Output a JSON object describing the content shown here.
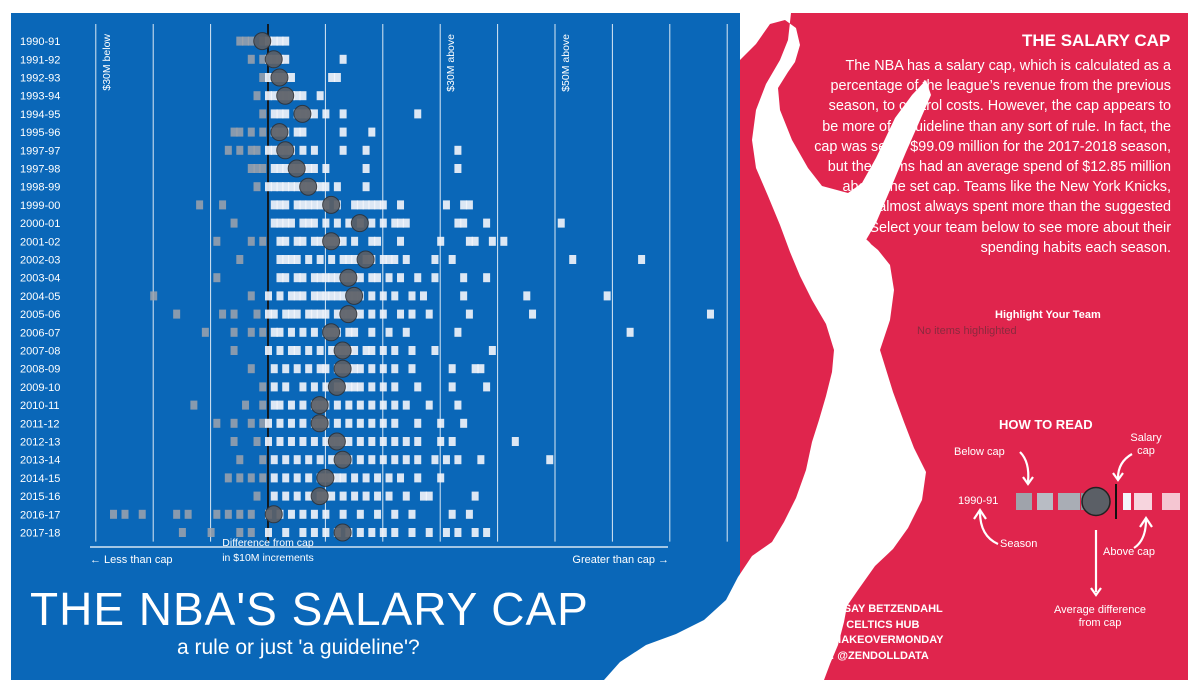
{
  "title": "THE NBA'S SALARY CAP",
  "subtitle": "a rule or just 'a guideline'?",
  "colors": {
    "blue": "#0a67b8",
    "red": "#e0254d",
    "white": "#ffffff",
    "mean_dot": "#5b5f66"
  },
  "side_panel": {
    "heading": "THE SALARY CAP",
    "description": "The NBA has a salary cap, which is calculated as a percentage of the league’s revenue from the previous season, to control costs. However, the cap appears to be more of a guideline than any sort of rule. In fact, the cap was set at $99.09 million for the 2017-2018 season, but the teams had an average spend of $12.85 million above the set cap. Teams like the New York Knicks, have almost always spent more than the suggested Select your team below to see more about their spending habits each season.",
    "highlight_label": "Highlight Your Team",
    "highlight_value": "No items highlighted"
  },
  "how_to_read": {
    "title": "HOW TO READ",
    "season_example": "1990-91",
    "below_cap": "Below cap",
    "salary_cap": "Salary cap",
    "season": "Season",
    "above_cap": "Above cap",
    "average": "Average difference from cap"
  },
  "credits": [
    "DESIGN: LINDSAY BETZENDAHL",
    "SOURCE: CELTICS HUB",
    "PROJECT: #MAKEOVERMONDAY",
    "FOLLOW: @ZENDOLLDATA"
  ],
  "chart_data": {
    "type": "scatter",
    "x_axis_title": "Difference from cap in $10M increments",
    "x_left_label": "← Less than cap",
    "x_right_label": "Greater than cap →",
    "x_unit": "$M difference from salary cap",
    "xlim": [
      -30,
      80
    ],
    "gridline_step": 10,
    "reference_lines": [
      {
        "x": -30,
        "label": "$30M below"
      },
      {
        "x": 0,
        "label": ""
      },
      {
        "x": 30,
        "label": "$30M above"
      },
      {
        "x": 50,
        "label": "$50M above"
      }
    ],
    "seasons": [
      {
        "season": "1990-91",
        "mean": -1,
        "teams": [
          -5,
          -4,
          -3,
          -1,
          0,
          1,
          2,
          3
        ]
      },
      {
        "season": "1991-92",
        "mean": 1,
        "teams": [
          -3,
          -1,
          0,
          1,
          2,
          3,
          13
        ]
      },
      {
        "season": "1992-93",
        "mean": 2,
        "teams": [
          -1,
          0,
          1,
          2,
          3,
          4,
          11,
          12
        ]
      },
      {
        "season": "1993-94",
        "mean": 3,
        "teams": [
          -2,
          0,
          1,
          2,
          3,
          4,
          5,
          6,
          9
        ]
      },
      {
        "season": "1994-95",
        "mean": 6,
        "teams": [
          -1,
          1,
          2,
          3,
          5,
          6,
          7,
          8,
          10,
          13,
          26
        ]
      },
      {
        "season": "1995-96",
        "mean": 2,
        "teams": [
          -6,
          -5,
          -3,
          -1,
          1,
          2,
          3,
          5,
          6,
          13,
          18
        ]
      },
      {
        "season": "1997-97",
        "mean": 3,
        "teams": [
          -7,
          -5,
          -3,
          -2,
          0,
          1,
          2,
          3,
          4,
          6,
          8,
          13,
          17,
          33
        ]
      },
      {
        "season": "1997-98",
        "mean": 5,
        "teams": [
          -3,
          -2,
          -1,
          1,
          2,
          3,
          4,
          5,
          6,
          7,
          8,
          10,
          17,
          33
        ]
      },
      {
        "season": "1998-99",
        "mean": 7,
        "teams": [
          -2,
          0,
          1,
          2,
          3,
          4,
          5,
          6,
          7,
          8,
          9,
          10,
          12,
          17
        ]
      },
      {
        "season": "1999-00",
        "mean": 11,
        "teams": [
          -12,
          -8,
          1,
          2,
          3,
          5,
          6,
          7,
          8,
          9,
          10,
          12,
          15,
          16,
          17,
          18,
          19,
          20,
          23,
          31,
          34,
          35
        ]
      },
      {
        "season": "2000-01",
        "mean": 16,
        "teams": [
          -6,
          1,
          2,
          3,
          4,
          6,
          7,
          8,
          10,
          12,
          14,
          16,
          18,
          20,
          22,
          23,
          24,
          33,
          34,
          38,
          51
        ]
      },
      {
        "season": "2001-02",
        "mean": 11,
        "teams": [
          -9,
          -3,
          -1,
          2,
          3,
          5,
          6,
          8,
          9,
          10,
          11,
          12,
          13,
          15,
          18,
          19,
          23,
          30,
          35,
          36,
          39,
          41
        ]
      },
      {
        "season": "2002-03",
        "mean": 17,
        "teams": [
          -5,
          2,
          3,
          4,
          5,
          7,
          9,
          11,
          13,
          14,
          15,
          17,
          18,
          20,
          21,
          22,
          24,
          29,
          32,
          53,
          65
        ]
      },
      {
        "season": "2003-04",
        "mean": 14,
        "teams": [
          -9,
          2,
          3,
          5,
          6,
          8,
          9,
          10,
          11,
          12,
          13,
          14,
          15,
          16,
          18,
          19,
          21,
          23,
          26,
          29,
          34,
          38
        ]
      },
      {
        "season": "2004-05",
        "mean": 15,
        "teams": [
          -20,
          -3,
          0,
          2,
          4,
          5,
          6,
          8,
          9,
          10,
          11,
          12,
          13,
          14,
          15,
          16,
          18,
          20,
          22,
          25,
          27,
          34,
          45,
          59
        ]
      },
      {
        "season": "2005-06",
        "mean": 14,
        "teams": [
          -16,
          -8,
          -6,
          -2,
          0,
          1,
          3,
          4,
          5,
          7,
          8,
          9,
          10,
          12,
          13,
          14,
          15,
          16,
          18,
          20,
          23,
          25,
          28,
          35,
          46,
          77
        ]
      },
      {
        "season": "2006-07",
        "mean": 11,
        "teams": [
          -11,
          -6,
          -3,
          -1,
          1,
          2,
          4,
          6,
          8,
          10,
          11,
          12,
          14,
          15,
          18,
          21,
          24,
          33,
          63
        ]
      },
      {
        "season": "2007-08",
        "mean": 13,
        "teams": [
          -6,
          0,
          2,
          4,
          5,
          7,
          9,
          11,
          12,
          13,
          14,
          15,
          17,
          18,
          20,
          22,
          25,
          29,
          39
        ]
      },
      {
        "season": "2008-09",
        "mean": 13,
        "teams": [
          -3,
          1,
          3,
          5,
          7,
          9,
          10,
          12,
          13,
          14,
          15,
          16,
          18,
          20,
          22,
          25,
          32,
          36,
          37
        ]
      },
      {
        "season": "2009-10",
        "mean": 12,
        "teams": [
          -1,
          1,
          3,
          6,
          8,
          10,
          12,
          13,
          14,
          15,
          16,
          18,
          20,
          22,
          26,
          32,
          38
        ]
      },
      {
        "season": "2010-11",
        "mean": 9,
        "teams": [
          -13,
          -4,
          -1,
          1,
          2,
          4,
          6,
          8,
          9,
          10,
          12,
          14,
          16,
          18,
          20,
          22,
          24,
          28,
          33
        ]
      },
      {
        "season": "2011-12",
        "mean": 9,
        "teams": [
          -9,
          -6,
          -3,
          -1,
          0,
          2,
          4,
          6,
          8,
          9,
          10,
          12,
          14,
          16,
          18,
          20,
          22,
          26,
          30,
          34
        ]
      },
      {
        "season": "2012-13",
        "mean": 12,
        "teams": [
          -6,
          -2,
          0,
          2,
          4,
          6,
          8,
          10,
          11,
          12,
          13,
          14,
          16,
          18,
          20,
          22,
          24,
          26,
          30,
          32,
          43
        ]
      },
      {
        "season": "2013-14",
        "mean": 13,
        "teams": [
          -5,
          -1,
          1,
          3,
          5,
          7,
          9,
          11,
          12,
          13,
          14,
          16,
          18,
          20,
          22,
          24,
          26,
          29,
          31,
          33,
          37,
          49
        ]
      },
      {
        "season": "2014-15",
        "mean": 10,
        "teams": [
          -7,
          -5,
          -3,
          -1,
          1,
          3,
          5,
          7,
          9,
          10,
          11,
          12,
          13,
          15,
          17,
          19,
          21,
          23,
          26,
          30
        ]
      },
      {
        "season": "2015-16",
        "mean": 9,
        "teams": [
          -2,
          1,
          3,
          5,
          7,
          9,
          10,
          11,
          13,
          15,
          17,
          19,
          21,
          24,
          27,
          28,
          36
        ]
      },
      {
        "season": "2016-17",
        "mean": 1,
        "teams": [
          -27,
          -25,
          -22,
          -16,
          -14,
          -9,
          -7,
          -5,
          -3,
          0,
          2,
          4,
          6,
          8,
          10,
          13,
          16,
          19,
          22,
          25,
          32,
          35
        ]
      },
      {
        "season": "2017-18",
        "mean": 13,
        "teams": [
          -15,
          -10,
          -5,
          -3,
          0,
          3,
          6,
          8,
          10,
          12,
          14,
          16,
          18,
          20,
          22,
          25,
          28,
          31,
          33,
          36,
          38
        ]
      }
    ]
  }
}
